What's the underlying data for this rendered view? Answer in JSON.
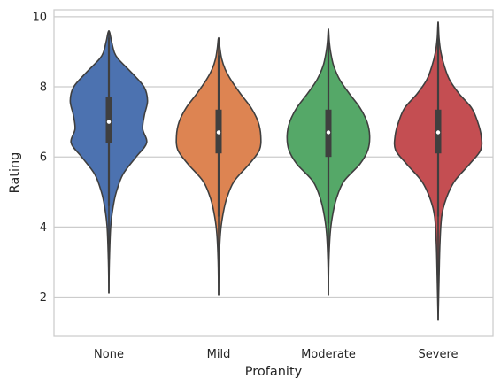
{
  "chart_data": {
    "type": "violin",
    "xlabel": "Profanity",
    "ylabel": "Rating",
    "categories": [
      "None",
      "Mild",
      "Moderate",
      "Severe"
    ],
    "colors": [
      "#4c72b0",
      "#dd8452",
      "#55a868",
      "#c44e52"
    ],
    "ylim": [
      0.9,
      10.2
    ],
    "yticks": [
      2,
      4,
      6,
      8,
      10
    ],
    "grid": "horizontal",
    "series": [
      {
        "category": "None",
        "min": 2.1,
        "max": 9.6,
        "q1": 6.4,
        "median": 7.0,
        "q3": 7.7,
        "whisker_low": 4.6,
        "whisker_high": 9.4,
        "density_width": [
          [
            2.1,
            0.0
          ],
          [
            3.0,
            0.01
          ],
          [
            4.0,
            0.04
          ],
          [
            4.6,
            0.1
          ],
          [
            5.0,
            0.17
          ],
          [
            5.5,
            0.32
          ],
          [
            6.0,
            0.62
          ],
          [
            6.4,
            0.86
          ],
          [
            6.8,
            0.77
          ],
          [
            7.2,
            0.81
          ],
          [
            7.6,
            0.88
          ],
          [
            8.0,
            0.8
          ],
          [
            8.4,
            0.52
          ],
          [
            8.8,
            0.21
          ],
          [
            9.0,
            0.12
          ],
          [
            9.3,
            0.06
          ],
          [
            9.6,
            0.0
          ]
        ]
      },
      {
        "category": "Mild",
        "min": 2.05,
        "max": 9.4,
        "q1": 6.1,
        "median": 6.7,
        "q3": 7.35,
        "whisker_low": 4.3,
        "whisker_high": 8.9,
        "density_width": [
          [
            2.05,
            0.0
          ],
          [
            3.0,
            0.01
          ],
          [
            3.8,
            0.04
          ],
          [
            4.3,
            0.09
          ],
          [
            4.8,
            0.18
          ],
          [
            5.3,
            0.35
          ],
          [
            5.8,
            0.7
          ],
          [
            6.2,
            0.93
          ],
          [
            6.6,
            0.96
          ],
          [
            7.0,
            0.9
          ],
          [
            7.4,
            0.74
          ],
          [
            7.8,
            0.5
          ],
          [
            8.2,
            0.28
          ],
          [
            8.5,
            0.15
          ],
          [
            8.8,
            0.07
          ],
          [
            9.1,
            0.03
          ],
          [
            9.4,
            0.0
          ]
        ]
      },
      {
        "category": "Moderate",
        "min": 2.05,
        "max": 9.65,
        "q1": 6.0,
        "median": 6.7,
        "q3": 7.35,
        "whisker_low": 4.1,
        "whisker_high": 9.3,
        "density_width": [
          [
            2.05,
            0.0
          ],
          [
            3.0,
            0.01
          ],
          [
            3.8,
            0.04
          ],
          [
            4.3,
            0.09
          ],
          [
            4.8,
            0.18
          ],
          [
            5.3,
            0.35
          ],
          [
            5.8,
            0.72
          ],
          [
            6.2,
            0.9
          ],
          [
            6.6,
            0.94
          ],
          [
            7.0,
            0.88
          ],
          [
            7.4,
            0.72
          ],
          [
            7.8,
            0.48
          ],
          [
            8.2,
            0.26
          ],
          [
            8.6,
            0.12
          ],
          [
            9.0,
            0.05
          ],
          [
            9.3,
            0.02
          ],
          [
            9.65,
            0.0
          ]
        ]
      },
      {
        "category": "Severe",
        "min": 1.35,
        "max": 9.85,
        "q1": 6.1,
        "median": 6.7,
        "q3": 7.35,
        "whisker_low": 4.3,
        "whisker_high": 9.5,
        "density_width": [
          [
            1.35,
            0.0
          ],
          [
            2.5,
            0.02
          ],
          [
            3.5,
            0.04
          ],
          [
            4.3,
            0.08
          ],
          [
            4.8,
            0.18
          ],
          [
            5.3,
            0.37
          ],
          [
            5.8,
            0.72
          ],
          [
            6.2,
            0.97
          ],
          [
            6.6,
            0.98
          ],
          [
            7.0,
            0.9
          ],
          [
            7.4,
            0.76
          ],
          [
            7.8,
            0.48
          ],
          [
            8.2,
            0.26
          ],
          [
            8.6,
            0.14
          ],
          [
            9.0,
            0.06
          ],
          [
            9.4,
            0.02
          ],
          [
            9.85,
            0.0
          ]
        ]
      }
    ]
  }
}
